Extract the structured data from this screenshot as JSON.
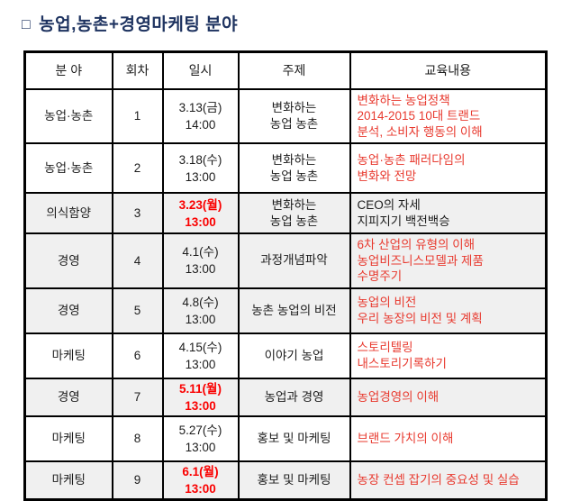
{
  "title": {
    "bullet": "□",
    "text": "농업,농촌+경영마케팅 분야"
  },
  "colors": {
    "title_navy": "#1e3360",
    "content_red": "#e8392e",
    "date_red": "#fa0000",
    "row_shade": "#f0f0f0",
    "border_black": "#000000"
  },
  "table": {
    "headers": [
      "분 야",
      "회차",
      "일시",
      "주제",
      "교육내용"
    ],
    "rows": [
      {
        "field": "농업·농촌",
        "session": "1",
        "date_lines": [
          "3.13(금)",
          "14:00"
        ],
        "date_highlight": false,
        "topic_lines": [
          "변화하는",
          "농업 농촌"
        ],
        "content_lines": [
          "변화하는 농업정책",
          "2014-2015 10대 트랜드",
          "분석, 소비자 행동의 이해"
        ],
        "content_color": "red"
      },
      {
        "field": "농업·농촌",
        "session": "2",
        "date_lines": [
          "3.18(수)",
          "13:00"
        ],
        "date_highlight": false,
        "topic_lines": [
          "변화하는",
          "농업 농촌"
        ],
        "content_lines": [
          "농업·농촌 패러다임의",
          "변화와 전망"
        ],
        "content_color": "red"
      },
      {
        "field": "의식함양",
        "session": "3",
        "date_lines": [
          "3.23(월)",
          "13:00"
        ],
        "date_highlight": true,
        "topic_lines": [
          "변화하는",
          "농업 농촌"
        ],
        "content_lines": [
          "CEO의 자세",
          "지피지기 백전백승"
        ],
        "content_color": "black"
      },
      {
        "field": "경영",
        "session": "4",
        "date_lines": [
          "4.1(수)",
          "13:00"
        ],
        "date_highlight": false,
        "topic_lines": [
          "과정개념파악"
        ],
        "content_lines": [
          "6차 산업의 유형의 이해",
          "농업비즈니스모델과 제품",
          "수명주기"
        ],
        "content_color": "red"
      },
      {
        "field": "경영",
        "session": "5",
        "date_lines": [
          "4.8(수)",
          "13:00"
        ],
        "date_highlight": false,
        "topic_lines": [
          "농촌 농업의 비전"
        ],
        "content_lines": [
          "농업의 비전",
          "우리 농장의 비전 및 계획"
        ],
        "content_color": "red"
      },
      {
        "field": "마케팅",
        "session": "6",
        "date_lines": [
          "4.15(수)",
          "13:00"
        ],
        "date_highlight": false,
        "topic_lines": [
          "이야기 농업"
        ],
        "content_lines": [
          "스토리텔링",
          "내스토리기록하기"
        ],
        "content_color": "red"
      },
      {
        "field": "경영",
        "session": "7",
        "date_lines": [
          "5.11(월)",
          "13:00"
        ],
        "date_highlight": true,
        "topic_lines": [
          "농업과 경영"
        ],
        "content_lines": [
          "농업경영의 이해"
        ],
        "content_color": "red"
      },
      {
        "field": "마케팅",
        "session": "8",
        "date_lines": [
          "5.27(수)",
          "13:00"
        ],
        "date_highlight": false,
        "topic_lines": [
          "홍보 및 마케팅"
        ],
        "content_lines": [
          "브랜드 가치의 이해"
        ],
        "content_color": "red"
      },
      {
        "field": "마케팅",
        "session": "9",
        "date_lines": [
          "6.1(월)",
          "13:00"
        ],
        "date_highlight": true,
        "topic_lines": [
          "홍보 및 마케팅"
        ],
        "content_lines": [
          "농장 컨셉 잡기의 중요성 및 실습"
        ],
        "content_color": "red"
      }
    ]
  }
}
